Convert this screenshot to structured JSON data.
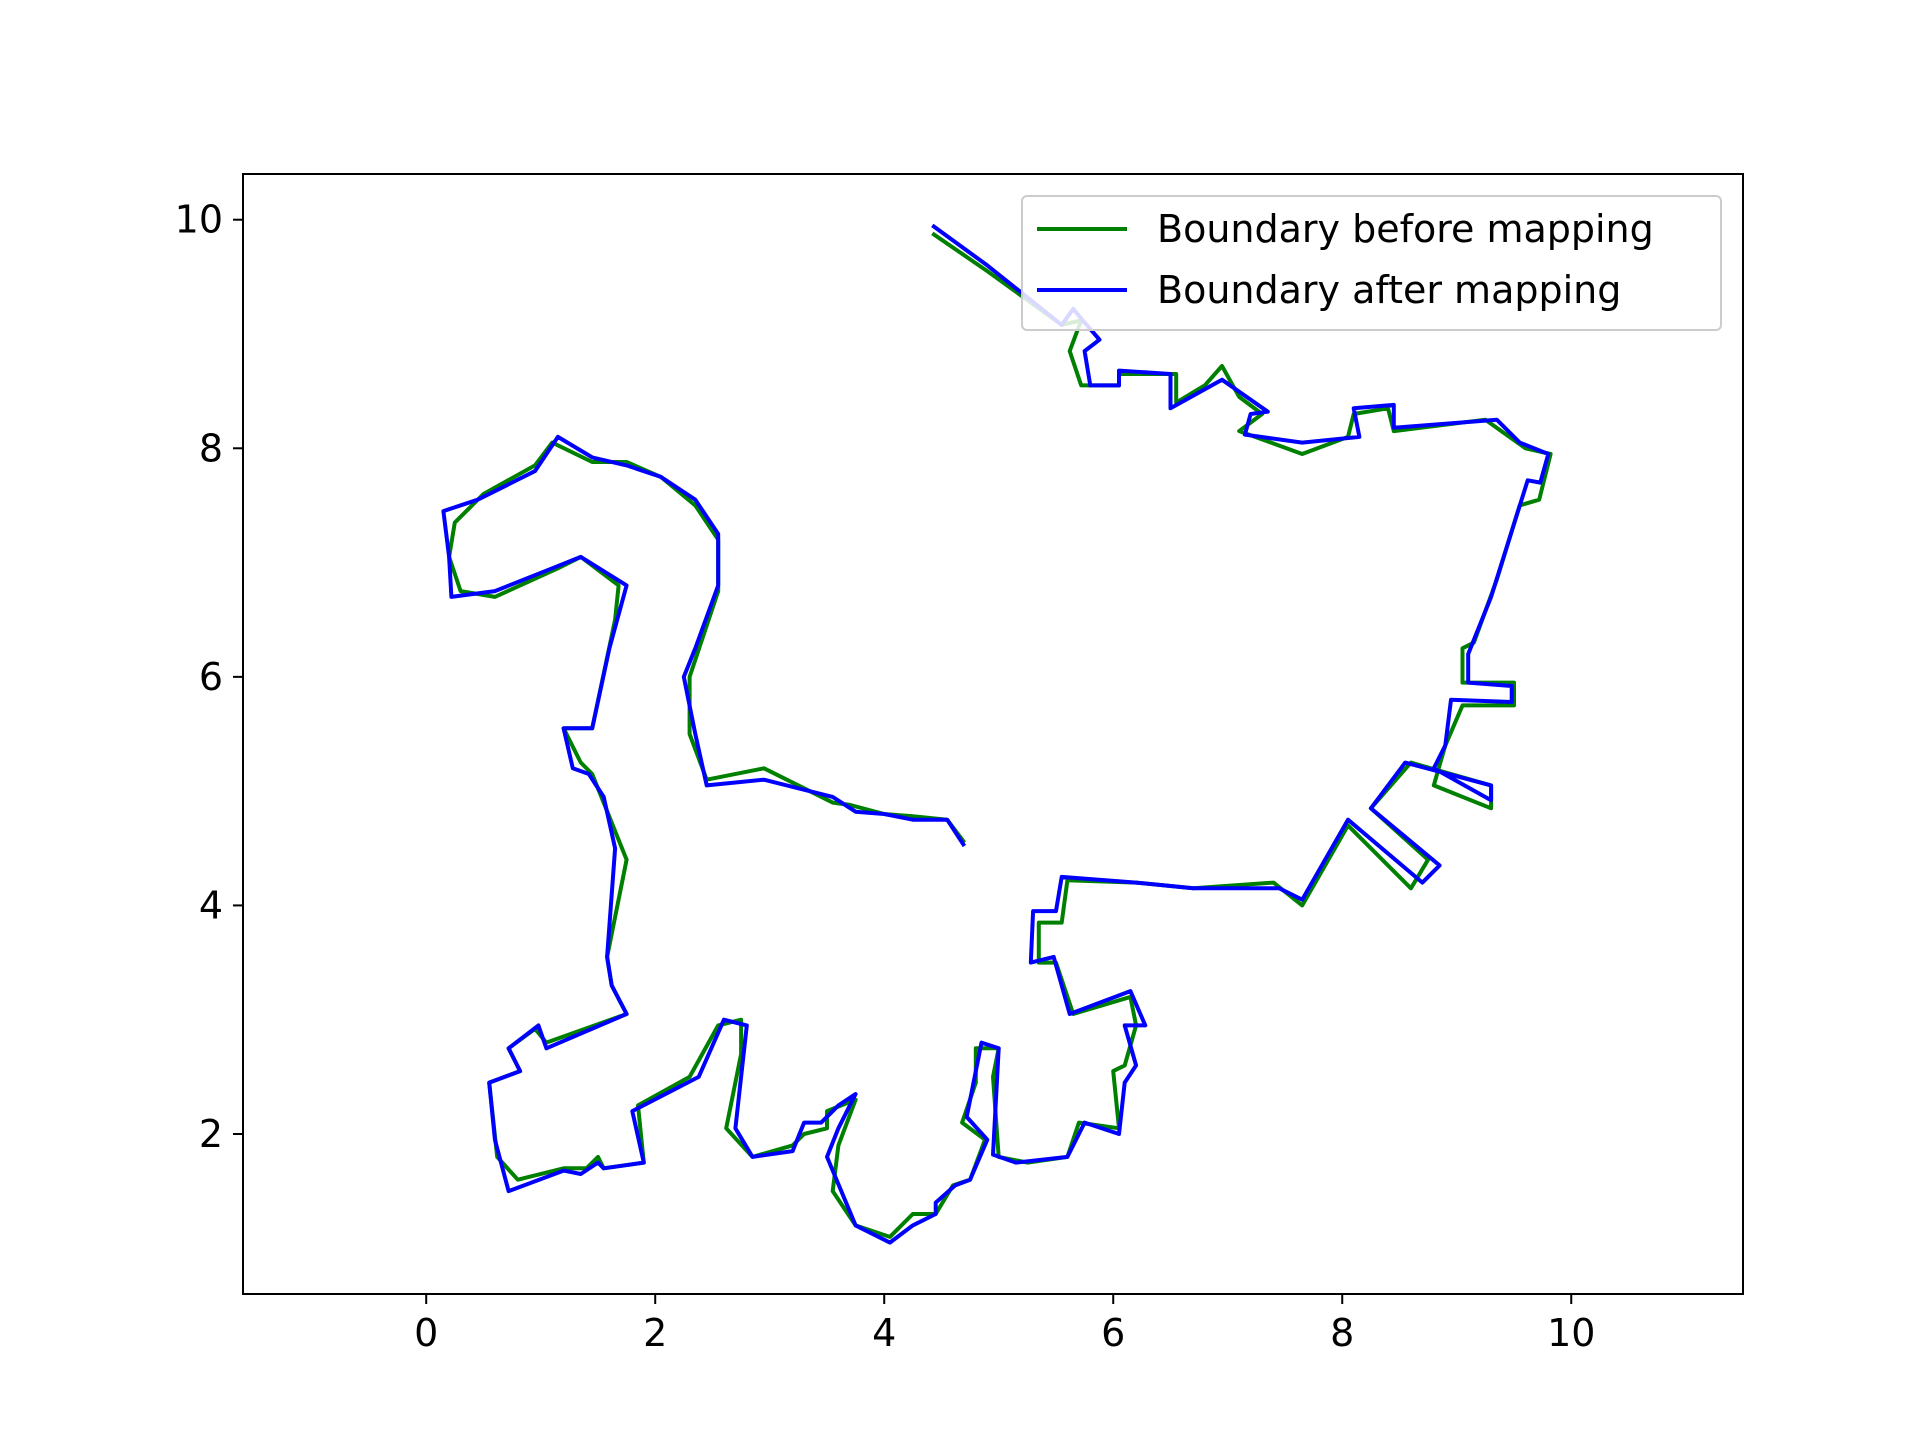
{
  "chart_data": {
    "type": "line",
    "title": "",
    "xlabel": "",
    "ylabel": "",
    "xlim": [
      -1.6,
      11.5
    ],
    "ylim": [
      0.6,
      10.4
    ],
    "xticks": [
      "0",
      "2",
      "4",
      "6",
      "8",
      "10"
    ],
    "yticks": [
      "2",
      "4",
      "6",
      "8",
      "10"
    ],
    "grid": false,
    "legend_position": "top-right",
    "series": [
      {
        "name": "Boundary before mapping",
        "color": "#008000",
        "points": [
          [
            4.42,
            9.88
          ],
          [
            4.9,
            9.55
          ],
          [
            5.55,
            9.08
          ],
          [
            5.72,
            9.12
          ],
          [
            5.62,
            8.85
          ],
          [
            5.72,
            8.55
          ],
          [
            6.05,
            8.55
          ],
          [
            6.05,
            8.65
          ],
          [
            6.55,
            8.65
          ],
          [
            6.55,
            8.4
          ],
          [
            6.8,
            8.55
          ],
          [
            6.95,
            8.72
          ],
          [
            7.1,
            8.45
          ],
          [
            7.3,
            8.3
          ],
          [
            7.1,
            8.15
          ],
          [
            7.65,
            7.95
          ],
          [
            8.05,
            8.1
          ],
          [
            8.1,
            8.3
          ],
          [
            8.4,
            8.35
          ],
          [
            8.45,
            8.15
          ],
          [
            9.25,
            8.25
          ],
          [
            9.6,
            8.0
          ],
          [
            9.82,
            7.95
          ],
          [
            9.72,
            7.55
          ],
          [
            9.55,
            7.5
          ],
          [
            9.35,
            6.85
          ],
          [
            9.15,
            6.3
          ],
          [
            9.05,
            6.25
          ],
          [
            9.05,
            5.95
          ],
          [
            9.5,
            5.95
          ],
          [
            9.5,
            5.75
          ],
          [
            9.05,
            5.75
          ],
          [
            8.9,
            5.4
          ],
          [
            8.8,
            5.05
          ],
          [
            9.3,
            4.85
          ],
          [
            9.3,
            5.05
          ],
          [
            8.6,
            5.25
          ],
          [
            8.25,
            4.85
          ],
          [
            8.75,
            4.4
          ],
          [
            8.6,
            4.15
          ],
          [
            8.05,
            4.7
          ],
          [
            7.65,
            4.0
          ],
          [
            7.4,
            4.2
          ],
          [
            6.7,
            4.15
          ],
          [
            6.2,
            4.2
          ],
          [
            5.6,
            4.22
          ],
          [
            5.55,
            3.85
          ],
          [
            5.35,
            3.85
          ],
          [
            5.35,
            3.5
          ],
          [
            5.5,
            3.5
          ],
          [
            5.65,
            3.05
          ],
          [
            6.15,
            3.2
          ],
          [
            6.2,
            2.95
          ],
          [
            6.1,
            2.6
          ],
          [
            6.0,
            2.55
          ],
          [
            6.05,
            2.05
          ],
          [
            5.7,
            2.1
          ],
          [
            5.6,
            1.8
          ],
          [
            5.25,
            1.75
          ],
          [
            5.0,
            1.8
          ],
          [
            4.95,
            2.5
          ],
          [
            5.0,
            2.75
          ],
          [
            4.8,
            2.75
          ],
          [
            4.8,
            2.45
          ],
          [
            4.68,
            2.1
          ],
          [
            4.88,
            1.95
          ],
          [
            4.75,
            1.6
          ],
          [
            4.6,
            1.55
          ],
          [
            4.45,
            1.3
          ],
          [
            4.25,
            1.3
          ],
          [
            4.05,
            1.1
          ],
          [
            3.75,
            1.2
          ],
          [
            3.55,
            1.5
          ],
          [
            3.6,
            1.9
          ],
          [
            3.75,
            2.3
          ],
          [
            3.5,
            2.2
          ],
          [
            3.5,
            2.05
          ],
          [
            3.3,
            2.0
          ],
          [
            3.2,
            1.9
          ],
          [
            2.85,
            1.8
          ],
          [
            2.62,
            2.05
          ],
          [
            2.75,
            2.7
          ],
          [
            2.75,
            3.0
          ],
          [
            2.55,
            2.95
          ],
          [
            2.3,
            2.5
          ],
          [
            1.85,
            2.25
          ],
          [
            1.9,
            1.75
          ],
          [
            1.55,
            1.7
          ],
          [
            1.5,
            1.8
          ],
          [
            1.4,
            1.7
          ],
          [
            1.2,
            1.7
          ],
          [
            0.8,
            1.6
          ],
          [
            0.62,
            1.8
          ],
          [
            0.55,
            2.45
          ],
          [
            0.82,
            2.55
          ],
          [
            0.72,
            2.75
          ],
          [
            0.95,
            2.92
          ],
          [
            1.05,
            2.8
          ],
          [
            1.75,
            3.05
          ],
          [
            1.62,
            3.3
          ],
          [
            1.58,
            3.55
          ],
          [
            1.75,
            4.4
          ],
          [
            1.65,
            4.65
          ],
          [
            1.45,
            5.15
          ],
          [
            1.35,
            5.25
          ],
          [
            1.2,
            5.55
          ],
          [
            1.45,
            5.55
          ],
          [
            1.65,
            6.5
          ],
          [
            1.68,
            6.8
          ],
          [
            1.35,
            7.05
          ],
          [
            1.15,
            6.95
          ],
          [
            0.6,
            6.7
          ],
          [
            0.3,
            6.75
          ],
          [
            0.2,
            7.05
          ],
          [
            0.25,
            7.35
          ],
          [
            0.5,
            7.6
          ],
          [
            0.95,
            7.85
          ],
          [
            1.1,
            8.05
          ],
          [
            1.45,
            7.88
          ],
          [
            1.75,
            7.88
          ],
          [
            2.05,
            7.75
          ],
          [
            2.35,
            7.5
          ],
          [
            2.55,
            7.2
          ],
          [
            2.55,
            6.75
          ],
          [
            2.4,
            6.3
          ],
          [
            2.3,
            6.0
          ],
          [
            2.3,
            5.5
          ],
          [
            2.45,
            5.1
          ],
          [
            2.95,
            5.2
          ],
          [
            3.55,
            4.9
          ],
          [
            3.7,
            4.88
          ],
          [
            4.0,
            4.8
          ],
          [
            4.25,
            4.78
          ],
          [
            4.55,
            4.75
          ],
          [
            4.7,
            4.55
          ]
        ]
      },
      {
        "name": "Boundary after mapping",
        "color": "#0000ff",
        "points": [
          [
            4.42,
            9.95
          ],
          [
            4.9,
            9.6
          ],
          [
            5.55,
            9.08
          ],
          [
            5.65,
            9.22
          ],
          [
            5.75,
            9.1
          ],
          [
            5.88,
            8.95
          ],
          [
            5.75,
            8.85
          ],
          [
            5.8,
            8.55
          ],
          [
            6.05,
            8.55
          ],
          [
            6.05,
            8.68
          ],
          [
            6.5,
            8.65
          ],
          [
            6.5,
            8.35
          ],
          [
            6.95,
            8.6
          ],
          [
            7.35,
            8.32
          ],
          [
            7.2,
            8.3
          ],
          [
            7.15,
            8.12
          ],
          [
            7.65,
            8.05
          ],
          [
            8.15,
            8.1
          ],
          [
            8.1,
            8.35
          ],
          [
            8.45,
            8.38
          ],
          [
            8.45,
            8.18
          ],
          [
            9.35,
            8.25
          ],
          [
            9.55,
            8.05
          ],
          [
            9.8,
            7.95
          ],
          [
            9.73,
            7.7
          ],
          [
            9.62,
            7.72
          ],
          [
            9.3,
            6.7
          ],
          [
            9.1,
            6.2
          ],
          [
            9.1,
            5.95
          ],
          [
            9.48,
            5.92
          ],
          [
            9.48,
            5.78
          ],
          [
            8.95,
            5.8
          ],
          [
            8.9,
            5.4
          ],
          [
            8.8,
            5.2
          ],
          [
            9.3,
            4.92
          ],
          [
            9.3,
            5.05
          ],
          [
            8.55,
            5.25
          ],
          [
            8.25,
            4.85
          ],
          [
            8.85,
            4.35
          ],
          [
            8.7,
            4.2
          ],
          [
            8.05,
            4.75
          ],
          [
            7.65,
            4.05
          ],
          [
            7.45,
            4.15
          ],
          [
            6.7,
            4.15
          ],
          [
            6.2,
            4.2
          ],
          [
            5.55,
            4.25
          ],
          [
            5.5,
            3.95
          ],
          [
            5.3,
            3.95
          ],
          [
            5.28,
            3.5
          ],
          [
            5.48,
            3.55
          ],
          [
            5.62,
            3.05
          ],
          [
            6.15,
            3.25
          ],
          [
            6.28,
            2.95
          ],
          [
            6.1,
            2.95
          ],
          [
            6.2,
            2.6
          ],
          [
            6.1,
            2.45
          ],
          [
            6.05,
            2.0
          ],
          [
            5.75,
            2.1
          ],
          [
            5.6,
            1.8
          ],
          [
            5.15,
            1.75
          ],
          [
            4.95,
            1.82
          ],
          [
            5.0,
            2.75
          ],
          [
            4.85,
            2.8
          ],
          [
            4.72,
            2.15
          ],
          [
            4.9,
            1.95
          ],
          [
            4.75,
            1.6
          ],
          [
            4.62,
            1.55
          ],
          [
            4.45,
            1.4
          ],
          [
            4.45,
            1.3
          ],
          [
            4.25,
            1.2
          ],
          [
            4.05,
            1.05
          ],
          [
            3.75,
            1.2
          ],
          [
            3.5,
            1.8
          ],
          [
            3.6,
            2.05
          ],
          [
            3.75,
            2.35
          ],
          [
            3.6,
            2.25
          ],
          [
            3.45,
            2.1
          ],
          [
            3.3,
            2.1
          ],
          [
            3.2,
            1.85
          ],
          [
            2.85,
            1.8
          ],
          [
            2.7,
            2.05
          ],
          [
            2.8,
            2.95
          ],
          [
            2.6,
            3.0
          ],
          [
            2.38,
            2.5
          ],
          [
            1.8,
            2.2
          ],
          [
            1.9,
            1.75
          ],
          [
            1.55,
            1.7
          ],
          [
            1.5,
            1.75
          ],
          [
            1.35,
            1.65
          ],
          [
            1.2,
            1.68
          ],
          [
            0.72,
            1.5
          ],
          [
            0.6,
            1.95
          ],
          [
            0.55,
            2.45
          ],
          [
            0.82,
            2.55
          ],
          [
            0.72,
            2.75
          ],
          [
            0.98,
            2.95
          ],
          [
            1.05,
            2.75
          ],
          [
            1.75,
            3.05
          ],
          [
            1.62,
            3.3
          ],
          [
            1.58,
            3.55
          ],
          [
            1.65,
            4.5
          ],
          [
            1.55,
            4.95
          ],
          [
            1.42,
            5.15
          ],
          [
            1.28,
            5.2
          ],
          [
            1.2,
            5.55
          ],
          [
            1.45,
            5.55
          ],
          [
            1.6,
            6.25
          ],
          [
            1.75,
            6.8
          ],
          [
            1.35,
            7.05
          ],
          [
            1.1,
            6.95
          ],
          [
            0.6,
            6.75
          ],
          [
            0.22,
            6.7
          ],
          [
            0.2,
            7.05
          ],
          [
            0.15,
            7.45
          ],
          [
            0.45,
            7.55
          ],
          [
            0.95,
            7.8
          ],
          [
            1.15,
            8.1
          ],
          [
            1.45,
            7.92
          ],
          [
            1.75,
            7.85
          ],
          [
            2.05,
            7.75
          ],
          [
            2.35,
            7.55
          ],
          [
            2.55,
            7.25
          ],
          [
            2.55,
            6.8
          ],
          [
            2.35,
            6.25
          ],
          [
            2.25,
            6.0
          ],
          [
            2.35,
            5.5
          ],
          [
            2.45,
            5.05
          ],
          [
            2.95,
            5.1
          ],
          [
            3.55,
            4.95
          ],
          [
            3.75,
            4.82
          ],
          [
            4.0,
            4.8
          ],
          [
            4.25,
            4.75
          ],
          [
            4.55,
            4.75
          ],
          [
            4.7,
            4.52
          ]
        ]
      }
    ]
  }
}
